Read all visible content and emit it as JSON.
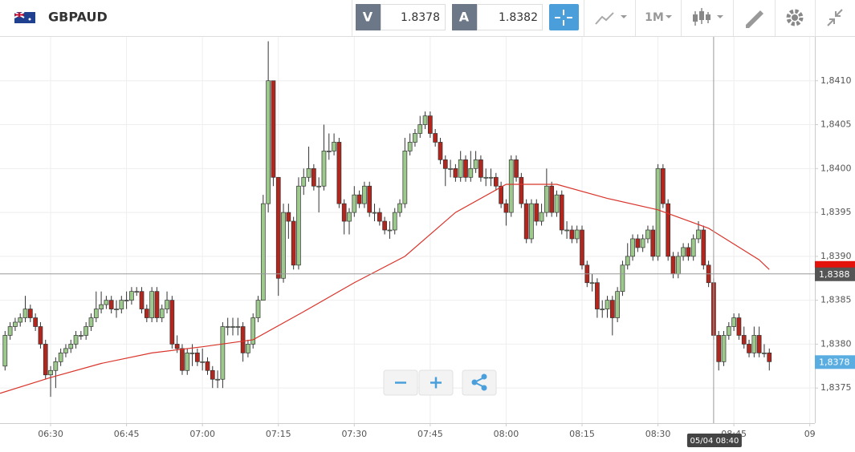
{
  "toolbar": {
    "symbol": "GBPAUD",
    "bid_label": "V",
    "bid": 1.8378,
    "ask_label": "A",
    "ask": 1.8382,
    "timeframe": "1M"
  },
  "chart_data": {
    "type": "candlestick",
    "x": [
      "06:21",
      "06:22",
      "06:23",
      "06:24",
      "06:25",
      "06:26",
      "06:27",
      "06:28",
      "06:29",
      "06:30",
      "06:31",
      "06:32",
      "06:33",
      "06:34",
      "06:35",
      "06:36",
      "06:37",
      "06:38",
      "06:39",
      "06:40",
      "06:41",
      "06:42",
      "06:43",
      "06:44",
      "06:45",
      "06:46",
      "06:47",
      "06:48",
      "06:49",
      "06:50",
      "06:51",
      "06:52",
      "06:53",
      "06:54",
      "06:55",
      "06:56",
      "06:57",
      "06:58",
      "06:59",
      "07:00",
      "07:01",
      "07:02",
      "07:03",
      "07:04",
      "07:05",
      "07:06",
      "07:07",
      "07:08",
      "07:09",
      "07:10",
      "07:11",
      "07:12",
      "07:13",
      "07:14",
      "07:15",
      "07:16",
      "07:17",
      "07:18",
      "07:19",
      "07:20",
      "07:21",
      "07:22",
      "07:23",
      "07:24",
      "07:25",
      "07:26",
      "07:27",
      "07:28",
      "07:29",
      "07:30",
      "07:31",
      "07:32",
      "07:33",
      "07:34",
      "07:35",
      "07:36",
      "07:37",
      "07:38",
      "07:39",
      "07:40",
      "07:41",
      "07:42",
      "07:43",
      "07:44",
      "07:45",
      "07:46",
      "07:47",
      "07:48",
      "07:49",
      "07:50",
      "07:51",
      "07:52",
      "07:53",
      "07:54",
      "07:55",
      "07:56",
      "07:57",
      "07:58",
      "07:59",
      "08:00",
      "08:01",
      "08:02",
      "08:03",
      "08:04",
      "08:05",
      "08:06",
      "08:07",
      "08:08",
      "08:09",
      "08:10",
      "08:11",
      "08:12",
      "08:13",
      "08:14",
      "08:15",
      "08:16",
      "08:17",
      "08:18",
      "08:19",
      "08:20",
      "08:21",
      "08:22",
      "08:23",
      "08:24",
      "08:25",
      "08:26",
      "08:27",
      "08:28",
      "08:29",
      "08:30",
      "08:31",
      "08:32",
      "08:33",
      "08:34",
      "08:35",
      "08:36",
      "08:37",
      "08:38",
      "08:39",
      "08:40",
      "08:41",
      "08:42",
      "08:43",
      "08:44",
      "08:45",
      "08:46",
      "08:47",
      "08:48",
      "08:49",
      "08:50",
      "08:51",
      "08:52"
    ],
    "open": [
      1.83775,
      1.8381,
      1.8382,
      1.83825,
      1.8383,
      1.8384,
      1.8383,
      1.8382,
      1.838,
      1.83765,
      1.8377,
      1.8378,
      1.8379,
      1.83795,
      1.838,
      1.8381,
      1.8381,
      1.8382,
      1.8383,
      1.8384,
      1.83845,
      1.8385,
      1.8384,
      1.8384,
      1.8385,
      1.8385,
      1.8386,
      1.8386,
      1.8384,
      1.8383,
      1.8386,
      1.8383,
      1.8384,
      1.8385,
      1.838,
      1.83795,
      1.8377,
      1.8379,
      1.8379,
      1.8378,
      1.8378,
      1.8377,
      1.8376,
      1.8376,
      1.8382,
      1.8382,
      1.8382,
      1.8382,
      1.8379,
      1.838,
      1.8383,
      1.8385,
      1.8396,
      1.841,
      1.8399,
      1.83875,
      1.8395,
      1.8394,
      1.8389,
      1.8398,
      1.8399,
      1.84,
      1.8398,
      1.8398,
      1.8402,
      1.8402,
      1.8403,
      1.8396,
      1.8394,
      1.8395,
      1.8397,
      1.8396,
      1.8398,
      1.8395,
      1.8395,
      1.8394,
      1.8393,
      1.8393,
      1.8395,
      1.8396,
      1.8402,
      1.8403,
      1.8404,
      1.8405,
      1.8406,
      1.8404,
      1.8403,
      1.8401,
      1.84,
      1.84,
      1.8399,
      1.8401,
      1.8399,
      1.84,
      1.8401,
      1.8399,
      1.8399,
      1.8399,
      1.8398,
      1.8396,
      1.8395,
      1.8401,
      1.8399,
      1.8396,
      1.8392,
      1.8396,
      1.8394,
      1.8395,
      1.8398,
      1.8395,
      1.8397,
      1.8393,
      1.8393,
      1.8392,
      1.8393,
      1.8389,
      1.8387,
      1.8387,
      1.8384,
      1.8384,
      1.8385,
      1.8383,
      1.8386,
      1.8389,
      1.839,
      1.8392,
      1.8391,
      1.8392,
      1.8393,
      1.839,
      1.84,
      1.8396,
      1.839,
      1.8388,
      1.839,
      1.8391,
      1.839,
      1.8392,
      1.8393,
      1.8389,
      1.8387,
      1.8381,
      1.8378,
      1.8381,
      1.8382,
      1.8383,
      1.8381,
      1.838,
      1.8379,
      1.8381,
      1.8379,
      1.8379
    ],
    "high": [
      1.83815,
      1.83825,
      1.8383,
      1.83835,
      1.83855,
      1.83845,
      1.83835,
      1.83825,
      1.83805,
      1.83775,
      1.83785,
      1.83795,
      1.838,
      1.83805,
      1.83815,
      1.83815,
      1.83825,
      1.83835,
      1.8386,
      1.8386,
      1.83855,
      1.83855,
      1.8385,
      1.83855,
      1.8386,
      1.83865,
      1.83865,
      1.83865,
      1.83845,
      1.83865,
      1.83865,
      1.83845,
      1.8386,
      1.83855,
      1.8381,
      1.838,
      1.83795,
      1.838,
      1.83795,
      1.83795,
      1.83785,
      1.83775,
      1.8377,
      1.83825,
      1.8383,
      1.8383,
      1.8383,
      1.83825,
      1.83805,
      1.83835,
      1.83855,
      1.8397,
      1.84145,
      1.841,
      1.8399,
      1.8396,
      1.8396,
      1.83945,
      1.8399,
      1.84,
      1.84025,
      1.84005,
      1.8399,
      1.8405,
      1.8404,
      1.8404,
      1.84035,
      1.83965,
      1.83955,
      1.8398,
      1.83975,
      1.83985,
      1.83985,
      1.8396,
      1.83955,
      1.83945,
      1.8394,
      1.83955,
      1.83965,
      1.84035,
      1.8404,
      1.84045,
      1.8406,
      1.84065,
      1.84065,
      1.84045,
      1.84035,
      1.84015,
      1.8401,
      1.84005,
      1.8402,
      1.84015,
      1.8402,
      1.8402,
      1.84015,
      1.84,
      1.84,
      1.83995,
      1.83985,
      1.83965,
      1.84015,
      1.84015,
      1.83995,
      1.83965,
      1.83965,
      1.83965,
      1.8396,
      1.84,
      1.83985,
      1.83975,
      1.83975,
      1.8394,
      1.83935,
      1.83935,
      1.83935,
      1.83895,
      1.8388,
      1.83875,
      1.8385,
      1.83855,
      1.83855,
      1.83865,
      1.83895,
      1.83915,
      1.83925,
      1.83925,
      1.83925,
      1.83935,
      1.83935,
      1.84005,
      1.84005,
      1.83965,
      1.83905,
      1.83905,
      1.83915,
      1.83915,
      1.83925,
      1.8394,
      1.83935,
      1.83895,
      1.83875,
      1.83815,
      1.83815,
      1.83825,
      1.83835,
      1.83835,
      1.8382,
      1.83805,
      1.8382,
      1.8382,
      1.838,
      1.83795
    ],
    "low": [
      1.8377,
      1.83805,
      1.83815,
      1.8382,
      1.83825,
      1.83825,
      1.83815,
      1.83795,
      1.8376,
      1.8374,
      1.8375,
      1.83775,
      1.83785,
      1.8379,
      1.83795,
      1.83805,
      1.83805,
      1.83815,
      1.83825,
      1.83835,
      1.8384,
      1.83835,
      1.8383,
      1.83835,
      1.8384,
      1.83845,
      1.83855,
      1.83835,
      1.83825,
      1.83825,
      1.83825,
      1.83825,
      1.83835,
      1.83795,
      1.8379,
      1.83765,
      1.83765,
      1.83775,
      1.83775,
      1.8377,
      1.83765,
      1.8375,
      1.8375,
      1.8375,
      1.8381,
      1.8381,
      1.8381,
      1.8378,
      1.83785,
      1.83795,
      1.83825,
      1.8385,
      1.8395,
      1.8398,
      1.83855,
      1.8387,
      1.8392,
      1.83885,
      1.83885,
      1.8397,
      1.83985,
      1.83975,
      1.8395,
      1.83975,
      1.8401,
      1.84015,
      1.83955,
      1.83925,
      1.83925,
      1.83945,
      1.83955,
      1.83955,
      1.83945,
      1.8394,
      1.83935,
      1.83925,
      1.8392,
      1.83925,
      1.83945,
      1.83955,
      1.84015,
      1.84025,
      1.84035,
      1.84045,
      1.84035,
      1.84025,
      1.84005,
      1.8398,
      1.8399,
      1.83985,
      1.83985,
      1.83985,
      1.83985,
      1.83995,
      1.83985,
      1.8398,
      1.8398,
      1.83975,
      1.83955,
      1.83935,
      1.83945,
      1.83985,
      1.83955,
      1.83915,
      1.83915,
      1.83935,
      1.83935,
      1.83945,
      1.83945,
      1.83945,
      1.83925,
      1.8392,
      1.83915,
      1.83915,
      1.83885,
      1.83865,
      1.8386,
      1.8383,
      1.8383,
      1.8383,
      1.8381,
      1.83825,
      1.83855,
      1.83885,
      1.83895,
      1.83905,
      1.83905,
      1.83915,
      1.83895,
      1.83895,
      1.83955,
      1.83895,
      1.83875,
      1.83875,
      1.83895,
      1.83895,
      1.83895,
      1.83915,
      1.83885,
      1.83865,
      1.83805,
      1.8377,
      1.83775,
      1.83805,
      1.83815,
      1.83805,
      1.83795,
      1.83785,
      1.83785,
      1.83785,
      1.83785,
      1.8377
    ],
    "close": [
      1.8381,
      1.8382,
      1.83825,
      1.8383,
      1.8384,
      1.8383,
      1.8382,
      1.838,
      1.83765,
      1.8377,
      1.8378,
      1.8379,
      1.83795,
      1.838,
      1.8381,
      1.8381,
      1.8382,
      1.8383,
      1.8384,
      1.83845,
      1.8385,
      1.8384,
      1.8384,
      1.8385,
      1.8385,
      1.8386,
      1.8386,
      1.8384,
      1.8383,
      1.8386,
      1.8383,
      1.8384,
      1.8385,
      1.838,
      1.83795,
      1.8377,
      1.8379,
      1.8379,
      1.8378,
      1.8378,
      1.8377,
      1.8376,
      1.8376,
      1.8382,
      1.8382,
      1.8382,
      1.8382,
      1.8379,
      1.838,
      1.8383,
      1.8385,
      1.8396,
      1.841,
      1.8399,
      1.83875,
      1.8395,
      1.8394,
      1.8389,
      1.8398,
      1.8399,
      1.84,
      1.8398,
      1.8398,
      1.8402,
      1.8402,
      1.8403,
      1.8396,
      1.8394,
      1.8395,
      1.8397,
      1.8396,
      1.8398,
      1.8395,
      1.8395,
      1.8394,
      1.8393,
      1.8393,
      1.8395,
      1.8396,
      1.8402,
      1.8403,
      1.8404,
      1.8405,
      1.8406,
      1.8404,
      1.8403,
      1.8401,
      1.84,
      1.84,
      1.8399,
      1.8401,
      1.8399,
      1.84,
      1.8401,
      1.8399,
      1.8399,
      1.8399,
      1.8398,
      1.8396,
      1.8395,
      1.8401,
      1.8399,
      1.8396,
      1.8392,
      1.8396,
      1.8394,
      1.8395,
      1.8398,
      1.8395,
      1.8397,
      1.8393,
      1.8393,
      1.8392,
      1.8393,
      1.8389,
      1.8387,
      1.8387,
      1.8384,
      1.8384,
      1.8385,
      1.8383,
      1.8386,
      1.8389,
      1.839,
      1.8392,
      1.8391,
      1.8392,
      1.8393,
      1.839,
      1.84,
      1.8396,
      1.839,
      1.8388,
      1.839,
      1.8391,
      1.839,
      1.8392,
      1.8393,
      1.8389,
      1.8387,
      1.8381,
      1.8378,
      1.8381,
      1.8382,
      1.8383,
      1.8381,
      1.838,
      1.8379,
      1.8381,
      1.8379,
      1.8379,
      1.8378
    ],
    "up_color": "#9dca8c",
    "down_color": "#b3261e",
    "ma": {
      "color": "#d9342b",
      "x": [
        "06:20",
        "06:30",
        "06:40",
        "06:50",
        "07:00",
        "07:10",
        "07:20",
        "07:30",
        "07:40",
        "07:50",
        "08:00",
        "08:10",
        "08:20",
        "08:30",
        "08:40",
        "08:50",
        "08:52"
      ],
      "values": [
        1.83744,
        1.83762,
        1.83778,
        1.8379,
        1.83797,
        1.83805,
        1.83837,
        1.8387,
        1.839,
        1.8395,
        1.83982,
        1.83982,
        1.83966,
        1.83953,
        1.83932,
        1.83896,
        1.83885
      ]
    },
    "xlim": [
      "06:20",
      "09:01"
    ],
    "xticks": [
      "06:30",
      "06:45",
      "07:00",
      "07:15",
      "07:30",
      "07:45",
      "08:00",
      "08:15",
      "08:30",
      "08:45",
      {
        "value": "09:00",
        "label": "09"
      }
    ],
    "ylim": [
      1.8371,
      1.8415
    ],
    "yticks": [
      {
        "value": 1.8375,
        "label": "1,8375"
      },
      {
        "value": 1.838,
        "label": "1,8380"
      },
      {
        "value": 1.8385,
        "label": "1,8385"
      },
      {
        "value": 1.839,
        "label": "1,8390"
      },
      {
        "value": 1.8395,
        "label": "1,8395"
      },
      {
        "value": 1.84,
        "label": "1,8400"
      },
      {
        "value": 1.8405,
        "label": "1,8405"
      },
      {
        "value": 1.841,
        "label": "1,8410"
      }
    ],
    "grid": true,
    "crosshair": {
      "x": "08:41",
      "time_label": "05/04 08:40",
      "price": {
        "value": 1.8388,
        "label": "1,8388"
      }
    },
    "last_price": {
      "value": 1.8378,
      "label": "1,8378"
    }
  }
}
